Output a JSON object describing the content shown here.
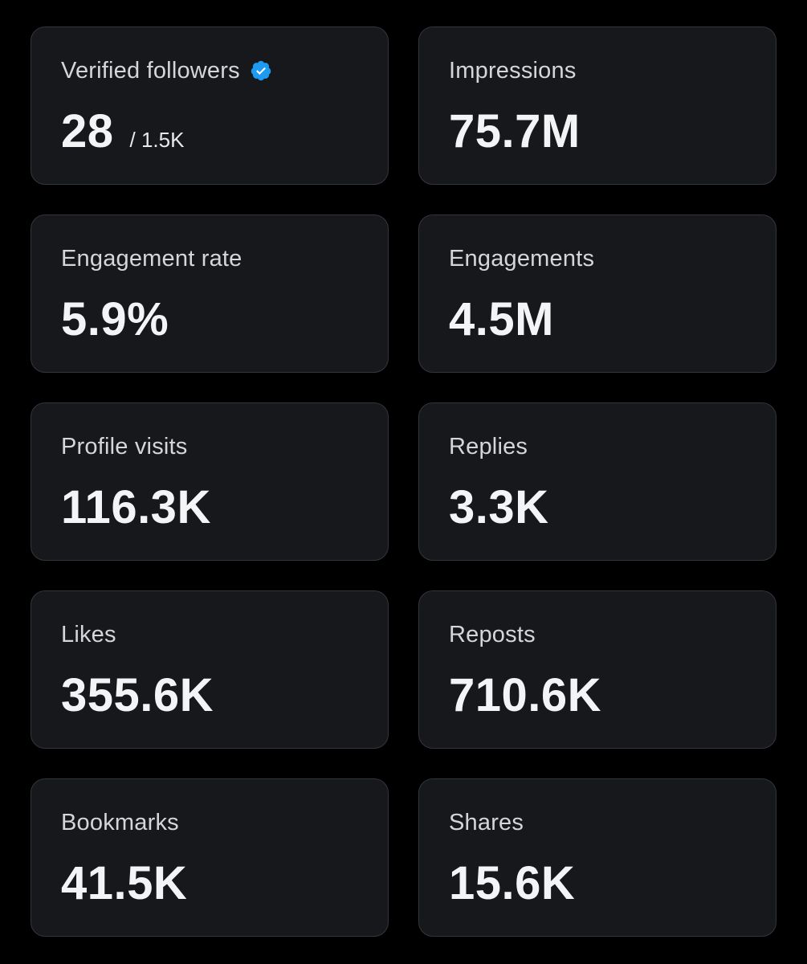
{
  "colors": {
    "background": "#000000",
    "card": "#16181c",
    "card_border": "#33363b",
    "label": "#d4d6d9",
    "value": "#f3f4f5",
    "verified_badge": "#1d9bf0"
  },
  "cards": [
    {
      "label": "Verified followers",
      "value": "28",
      "sub": "/ 1.5K",
      "icon": "verified-badge-icon"
    },
    {
      "label": "Impressions",
      "value": "75.7M"
    },
    {
      "label": "Engagement rate",
      "value": "5.9%"
    },
    {
      "label": "Engagements",
      "value": "4.5M"
    },
    {
      "label": "Profile visits",
      "value": "116.3K"
    },
    {
      "label": "Replies",
      "value": "3.3K"
    },
    {
      "label": "Likes",
      "value": "355.6K"
    },
    {
      "label": "Reposts",
      "value": "710.6K"
    },
    {
      "label": "Bookmarks",
      "value": "41.5K"
    },
    {
      "label": "Shares",
      "value": "15.6K"
    }
  ]
}
